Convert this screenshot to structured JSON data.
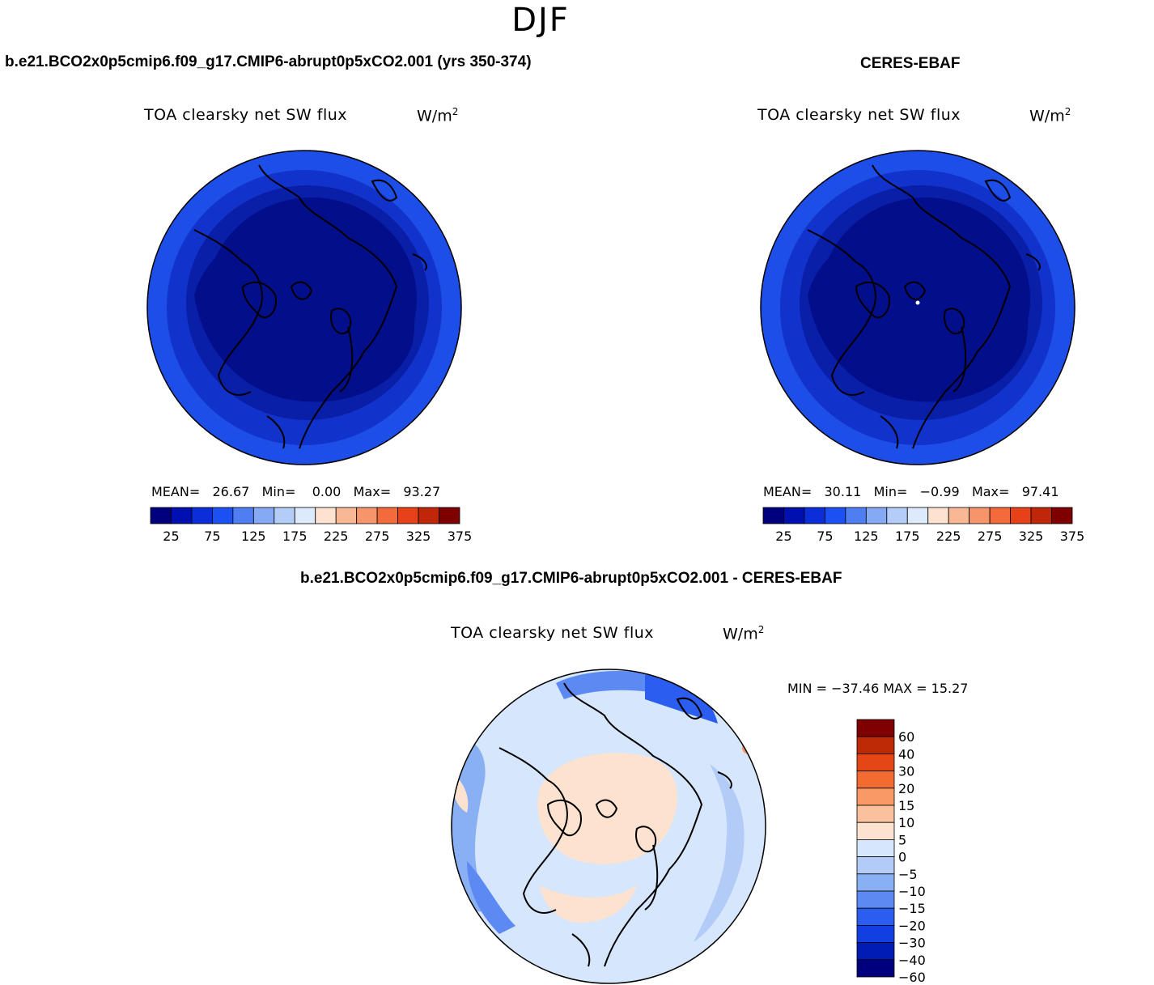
{
  "season": "DJF",
  "panels": {
    "model": {
      "title": "b.e21.BCO2x0p5cmip6.f09_g17.CMIP6-abrupt0p5xCO2.001 (yrs 350-374)",
      "variable": "TOA clearsky net SW flux",
      "units": "W/m",
      "units_sup": "2",
      "stats": {
        "mean_label": "MEAN=",
        "mean": "26.67",
        "min_label": "Min=",
        "min": "0.00",
        "max_label": "Max=",
        "max": "93.27"
      }
    },
    "obs": {
      "title": "CERES-EBAF",
      "variable": "TOA clearsky net SW flux",
      "units": "W/m",
      "units_sup": "2",
      "stats": {
        "mean_label": "MEAN=",
        "mean": "30.11",
        "min_label": "Min=",
        "min": "−0.99",
        "max_label": "Max=",
        "max": "97.41"
      }
    },
    "diff": {
      "title": "b.e21.BCO2x0p5cmip6.f09_g17.CMIP6-abrupt0p5xCO2.001 - CERES-EBAF",
      "variable": "TOA clearsky net SW flux",
      "units": "W/m",
      "units_sup": "2",
      "minmax": "MIN = −37.46 MAX =  15.27"
    }
  },
  "abs_colorbar": {
    "colors": [
      "#00007f",
      "#0010b0",
      "#0a2fd8",
      "#1b50f2",
      "#4f7ef2",
      "#85a9f5",
      "#b4ccf8",
      "#ddeafc",
      "#fde3cf",
      "#f9b895",
      "#f6956b",
      "#f36b3d",
      "#e64119",
      "#c02708",
      "#7f0000"
    ],
    "tick_labels": [
      "25",
      "75",
      "125",
      "175",
      "225",
      "275",
      "325",
      "375"
    ]
  },
  "diff_colorbar": {
    "colors": [
      "#00007f",
      "#001cb5",
      "#123fe2",
      "#2b5ef0",
      "#5d89f2",
      "#8ab0f4",
      "#b2cbf7",
      "#d6e6fc",
      "#fde3cf",
      "#fbc09e",
      "#f89966",
      "#f36b31",
      "#e44616",
      "#bc2a06",
      "#7f0000"
    ],
    "tick_labels": [
      "60",
      "40",
      "30",
      "20",
      "15",
      "10",
      "5",
      "0",
      "−5",
      "−10",
      "−15",
      "−20",
      "−30",
      "−40",
      "−60"
    ]
  },
  "map_colors": {
    "abs_outer": "#1d4ee8",
    "abs_mid": "#1232cc",
    "abs_inner": "#0a1fa8",
    "abs_core": "#030e8a",
    "diff_base": "#d6e6fc",
    "diff_pos": "#fde3cf",
    "diff_neg1": "#b2cbf7",
    "diff_neg2": "#8ab0f4",
    "diff_neg3": "#5d89f2",
    "diff_neg4": "#2b5ef0",
    "diff_hot": "#f89966"
  }
}
